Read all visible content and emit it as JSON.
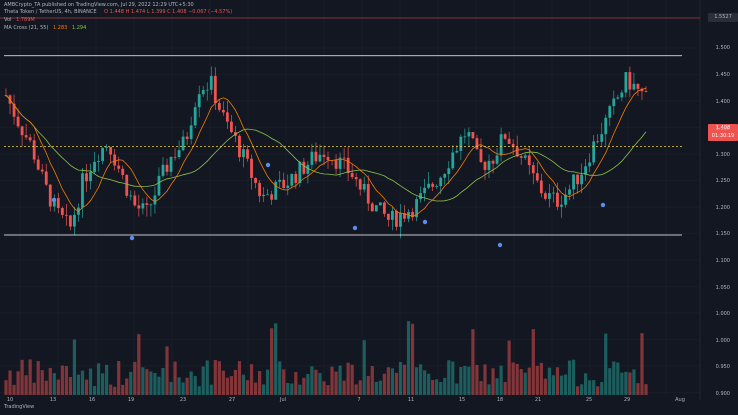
{
  "header": {
    "publisher": "AMBCrypto_TA published on TradingView.com, Jul 29, 2022 12:29 UTC+5:30",
    "symbol_line": "Theta Token / TetherUS, 4h, BINANCE",
    "ohlc": "O 1.448 H 1.474 L 1.399 C 1.408 −0.067 (−4.57%)"
  },
  "legend": {
    "vol_label": "Vol",
    "vol_value": "1.789M",
    "ma_label": "MA Cross (21, 55)",
    "ma_fast": "1.283",
    "ma_slow": "1.294"
  },
  "price_labels": {
    "current_price": "1.408",
    "countdown": "01:30:19",
    "top_label": "1.5527"
  },
  "y_axis": [
    "1.550",
    "1.500",
    "1.450",
    "1.400",
    "1.350",
    "1.300",
    "1.250",
    "1.200",
    "1.150",
    "1.100",
    "1.050",
    "1.000",
    "0.950",
    "0.900"
  ],
  "x_axis": [
    "10",
    "13",
    "16",
    "19",
    "23",
    "27",
    "Jul",
    "7",
    "11",
    "15",
    "18",
    "21",
    "25",
    "29",
    "Aug"
  ],
  "footer": "TradingView",
  "colors": {
    "background": "#131722",
    "up": "#26a69a",
    "down": "#ef5350",
    "fast_ma": "#f57c00",
    "slow_ma": "#8bc34a",
    "cross_marker": "#5b8def",
    "level_line": "#ffffff",
    "dashed_level": "#f5d142"
  },
  "chart_data": {
    "type": "candlestick",
    "series": [
      {
        "name": "Theta Token / TetherUS",
        "values": []
      }
    ],
    "levels": [
      1.52,
      1.29,
      1.065
    ],
    "ylim": [
      0.9,
      1.56
    ],
    "xlabel": "",
    "ylabel": ""
  }
}
